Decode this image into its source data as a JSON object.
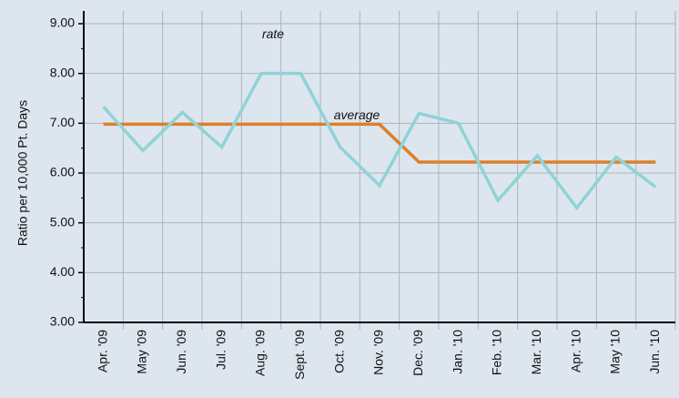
{
  "chart_data": {
    "type": "line",
    "y_label": "Ratio per 10,000 Pt. Days",
    "categories": [
      "Apr. '09",
      "May '09",
      "Jun. '09",
      "Jul. '09",
      "Aug. '09",
      "Sept. '09",
      "Oct. '09",
      "Nov. '09",
      "Dec. '09",
      "Jan. '10",
      "Feb. '10",
      "Mar. '10",
      "Apr. '10",
      "May '10",
      "Jun. '10"
    ],
    "series": [
      {
        "name": "rate",
        "color": "#8fd3d6",
        "values": [
          7.33,
          6.45,
          7.22,
          6.52,
          8.0,
          8.0,
          6.52,
          5.75,
          7.2,
          7.0,
          5.45,
          6.35,
          5.3,
          6.32,
          5.72
        ]
      },
      {
        "name": "average",
        "color": "#dd7f2a",
        "values": [
          6.98,
          6.98,
          6.98,
          6.98,
          6.98,
          6.98,
          6.98,
          6.98,
          6.22,
          6.22,
          6.22,
          6.22,
          6.22,
          6.22,
          6.22
        ]
      }
    ],
    "ylim": [
      3,
      9
    ],
    "yticks": [
      {
        "value": 3,
        "label": "3.00"
      },
      {
        "value": 4,
        "label": "4.00"
      },
      {
        "value": 5,
        "label": "5.00"
      },
      {
        "value": 6,
        "label": "6.00"
      },
      {
        "value": 7,
        "label": "7.00"
      },
      {
        "value": 8,
        "label": "8.00"
      },
      {
        "value": 9,
        "label": "9.00"
      }
    ],
    "grid": true
  }
}
